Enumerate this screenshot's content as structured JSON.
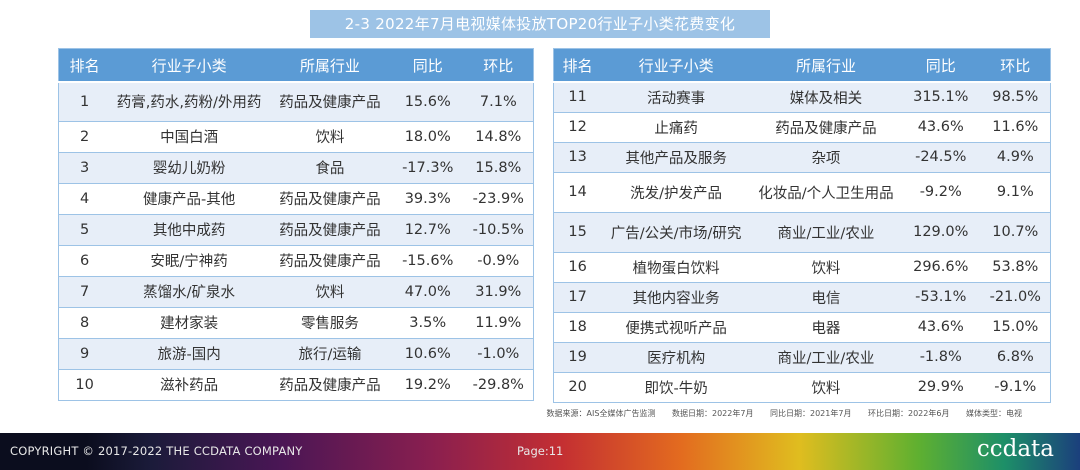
{
  "title": "2-3 2022年7月电视媒体投放TOP20行业子小类花费变化",
  "headers": [
    "排名",
    "行业子小类",
    "所属行业",
    "同比",
    "环比"
  ],
  "left_rows": [
    {
      "rank": "1",
      "subcategory": "药膏,药水,药粉/外用药",
      "industry": "药品及健康产品",
      "yoy": "15.6%",
      "mom": "7.1%"
    },
    {
      "rank": "2",
      "subcategory": "中国白酒",
      "industry": "饮料",
      "yoy": "18.0%",
      "mom": "14.8%"
    },
    {
      "rank": "3",
      "subcategory": "婴幼儿奶粉",
      "industry": "食品",
      "yoy": "-17.3%",
      "mom": "15.8%"
    },
    {
      "rank": "4",
      "subcategory": "健康产品-其他",
      "industry": "药品及健康产品",
      "yoy": "39.3%",
      "mom": "-23.9%"
    },
    {
      "rank": "5",
      "subcategory": "其他中成药",
      "industry": "药品及健康产品",
      "yoy": "12.7%",
      "mom": "-10.5%"
    },
    {
      "rank": "6",
      "subcategory": "安眠/宁神药",
      "industry": "药品及健康产品",
      "yoy": "-15.6%",
      "mom": "-0.9%"
    },
    {
      "rank": "7",
      "subcategory": "蒸馏水/矿泉水",
      "industry": "饮料",
      "yoy": "47.0%",
      "mom": "31.9%"
    },
    {
      "rank": "8",
      "subcategory": "建材家装",
      "industry": "零售服务",
      "yoy": "3.5%",
      "mom": "11.9%"
    },
    {
      "rank": "9",
      "subcategory": "旅游-国内",
      "industry": "旅行/运输",
      "yoy": "10.6%",
      "mom": "-1.0%"
    },
    {
      "rank": "10",
      "subcategory": "滋补药品",
      "industry": "药品及健康产品",
      "yoy": "19.2%",
      "mom": "-29.8%"
    }
  ],
  "right_rows": [
    {
      "rank": "11",
      "subcategory": "活动赛事",
      "industry": "媒体及相关",
      "yoy": "315.1%",
      "mom": "98.5%"
    },
    {
      "rank": "12",
      "subcategory": "止痛药",
      "industry": "药品及健康产品",
      "yoy": "43.6%",
      "mom": "11.6%"
    },
    {
      "rank": "13",
      "subcategory": "其他产品及服务",
      "industry": "杂项",
      "yoy": "-24.5%",
      "mom": "4.9%"
    },
    {
      "rank": "14",
      "subcategory": "洗发/护发产品",
      "industry": "化妆品/个人卫生用品",
      "yoy": "-9.2%",
      "mom": "9.1%"
    },
    {
      "rank": "15",
      "subcategory": "广告/公关/市场/研究",
      "industry": "商业/工业/农业",
      "yoy": "129.0%",
      "mom": "10.7%"
    },
    {
      "rank": "16",
      "subcategory": "植物蛋白饮料",
      "industry": "饮料",
      "yoy": "296.6%",
      "mom": "53.8%"
    },
    {
      "rank": "17",
      "subcategory": "其他内容业务",
      "industry": "电信",
      "yoy": "-53.1%",
      "mom": "-21.0%"
    },
    {
      "rank": "18",
      "subcategory": "便携式视听产品",
      "industry": "电器",
      "yoy": "43.6%",
      "mom": "15.0%"
    },
    {
      "rank": "19",
      "subcategory": "医疗机构",
      "industry": "商业/工业/农业",
      "yoy": "-1.8%",
      "mom": "6.8%"
    },
    {
      "rank": "20",
      "subcategory": "即饮-牛奶",
      "industry": "饮料",
      "yoy": "29.9%",
      "mom": "-9.1%"
    }
  ],
  "source_note": {
    "source": "数据来源：AIS全媒体广告监测",
    "data_date": "数据日期：2022年7月",
    "yoy_date": "同比日期：2021年7月",
    "mom_date": "环比日期：2022年6月",
    "media_type": "媒体类型：电视"
  },
  "footer": {
    "copyright": "COPYRIGHT © 2017-2022 THE CCDATA COMPANY",
    "page": "Page:11",
    "logo": "ccdata"
  }
}
